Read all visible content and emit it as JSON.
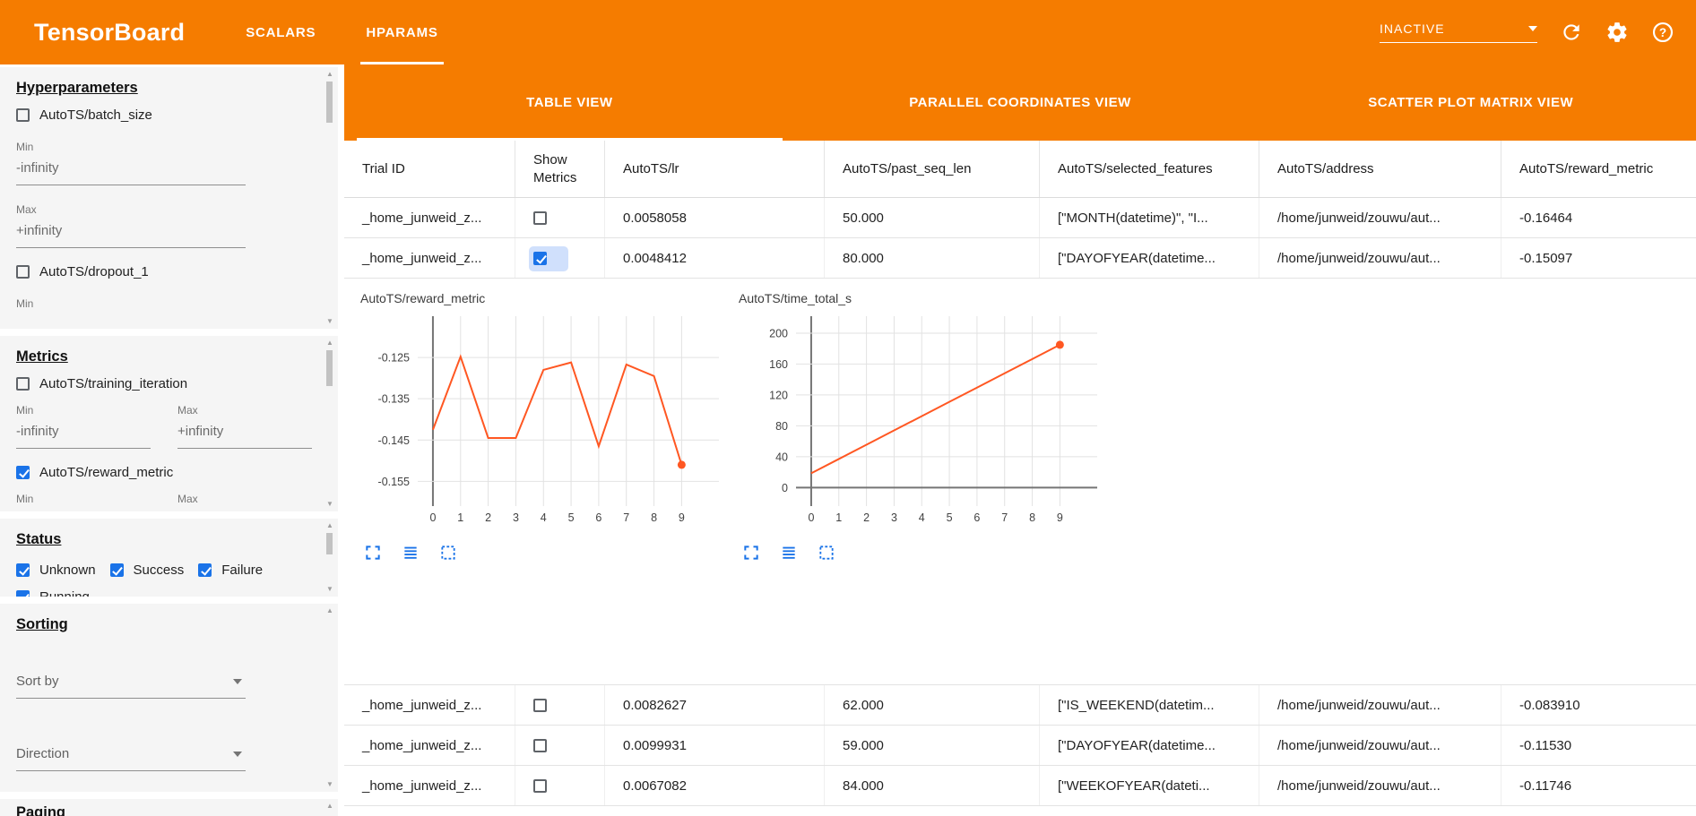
{
  "header": {
    "title": "TensorBoard",
    "nav_tabs": [
      {
        "label": "SCALARS",
        "active": false
      },
      {
        "label": "HPARAMS",
        "active": true
      }
    ],
    "run_status": "INACTIVE",
    "icons": [
      "dropdown-arrow-icon",
      "refresh-icon",
      "settings-gear-icon",
      "help-icon"
    ],
    "accent_color": "#f57c00"
  },
  "sidebar": {
    "hyperparameters": {
      "title": "Hyperparameters",
      "items": [
        {
          "label": "AutoTS/batch_size",
          "checked": false,
          "min_label": "Min",
          "min_value": "-infinity",
          "max_label": "Max",
          "max_value": "+infinity"
        },
        {
          "label": "AutoTS/dropout_1",
          "checked": false,
          "min_label": "Min"
        }
      ]
    },
    "metrics": {
      "title": "Metrics",
      "items": [
        {
          "label": "AutoTS/training_iteration",
          "checked": false,
          "min_label": "Min",
          "min_value": "-infinity",
          "max_label": "Max",
          "max_value": "+infinity"
        },
        {
          "label": "AutoTS/reward_metric",
          "checked": true,
          "min_label": "Min",
          "max_label": "Max"
        }
      ]
    },
    "status": {
      "title": "Status",
      "items": [
        {
          "label": "Unknown",
          "checked": true
        },
        {
          "label": "Success",
          "checked": true
        },
        {
          "label": "Failure",
          "checked": true
        },
        {
          "label": "Running",
          "checked": true
        }
      ]
    },
    "sorting": {
      "title": "Sorting",
      "sort_by_placeholder": "Sort by",
      "direction_placeholder": "Direction"
    },
    "paging": {
      "title": "Paging"
    }
  },
  "main": {
    "view_tabs": [
      {
        "label": "TABLE VIEW",
        "active": true
      },
      {
        "label": "PARALLEL COORDINATES VIEW",
        "active": false
      },
      {
        "label": "SCATTER PLOT MATRIX VIEW",
        "active": false
      }
    ],
    "table": {
      "columns": [
        "Trial ID",
        "Show Metrics",
        "AutoTS/lr",
        "AutoTS/past_seq_len",
        "AutoTS/selected_features",
        "AutoTS/address",
        "AutoTS/reward_metric"
      ],
      "rows": [
        {
          "trial_id": "_home_junweid_z...",
          "show_metrics": false,
          "lr": "0.0058058",
          "past_seq_len": "50.000",
          "selected_features": "[\"MONTH(datetime)\", \"I...",
          "address": "/home/junweid/zouwu/aut...",
          "reward_metric": "-0.16464"
        },
        {
          "trial_id": "_home_junweid_z...",
          "show_metrics": true,
          "lr": "0.0048412",
          "past_seq_len": "80.000",
          "selected_features": "[\"DAYOFYEAR(datetime...",
          "address": "/home/junweid/zouwu/aut...",
          "reward_metric": "-0.15097"
        },
        {
          "trial_id": "_home_junweid_z...",
          "show_metrics": false,
          "lr": "0.0082627",
          "past_seq_len": "62.000",
          "selected_features": "[\"IS_WEEKEND(datetim...",
          "address": "/home/junweid/zouwu/aut...",
          "reward_metric": "-0.083910"
        },
        {
          "trial_id": "_home_junweid_z...",
          "show_metrics": false,
          "lr": "0.0099931",
          "past_seq_len": "59.000",
          "selected_features": "[\"DAYOFYEAR(datetime...",
          "address": "/home/junweid/zouwu/aut...",
          "reward_metric": "-0.11530"
        },
        {
          "trial_id": "_home_junweid_z...",
          "show_metrics": false,
          "lr": "0.0067082",
          "past_seq_len": "84.000",
          "selected_features": "[\"WEEKOFYEAR(dateti...",
          "address": "/home/junweid/zouwu/aut...",
          "reward_metric": "-0.11746"
        }
      ]
    },
    "chart_tool_icons": [
      "fullscreen-icon",
      "list-lines-icon",
      "dashed-selection-icon"
    ]
  },
  "chart_data": [
    {
      "type": "line",
      "title": "AutoTS/reward_metric",
      "x": [
        0,
        1,
        2,
        3,
        4,
        5,
        6,
        7,
        8,
        9
      ],
      "values": [
        -0.1425,
        -0.1248,
        -0.1445,
        -0.1445,
        -0.128,
        -0.1262,
        -0.1465,
        -0.1267,
        -0.1295,
        -0.151
      ],
      "xlabel": "",
      "ylabel": "",
      "ylim": [
        -0.161,
        -0.115
      ],
      "yticks": [
        -0.125,
        -0.135,
        -0.145,
        -0.155
      ],
      "ytick_labels": [
        "-0.125",
        "-0.135",
        "-0.145",
        "-0.155"
      ],
      "xticks": [
        0,
        1,
        2,
        3,
        4,
        5,
        6,
        7,
        8,
        9
      ],
      "grid": true,
      "legend": "none",
      "line_color": "#ff5722",
      "endpoint_dot": true
    },
    {
      "type": "line",
      "title": "AutoTS/time_total_s",
      "x": [
        0,
        1,
        2,
        3,
        4,
        5,
        6,
        7,
        8,
        9
      ],
      "values": [
        18.5,
        37,
        55.5,
        74,
        92.5,
        111,
        129.5,
        148,
        166.5,
        185
      ],
      "xlabel": "",
      "ylabel": "",
      "ylim": [
        -24,
        222
      ],
      "yticks": [
        0,
        40,
        80,
        120,
        160,
        200
      ],
      "ytick_labels": [
        "0",
        "40",
        "80",
        "120",
        "160",
        "200"
      ],
      "xticks": [
        0,
        1,
        2,
        3,
        4,
        5,
        6,
        7,
        8,
        9
      ],
      "grid": true,
      "legend": "none",
      "line_color": "#ff5722",
      "endpoint_dot": true
    }
  ]
}
